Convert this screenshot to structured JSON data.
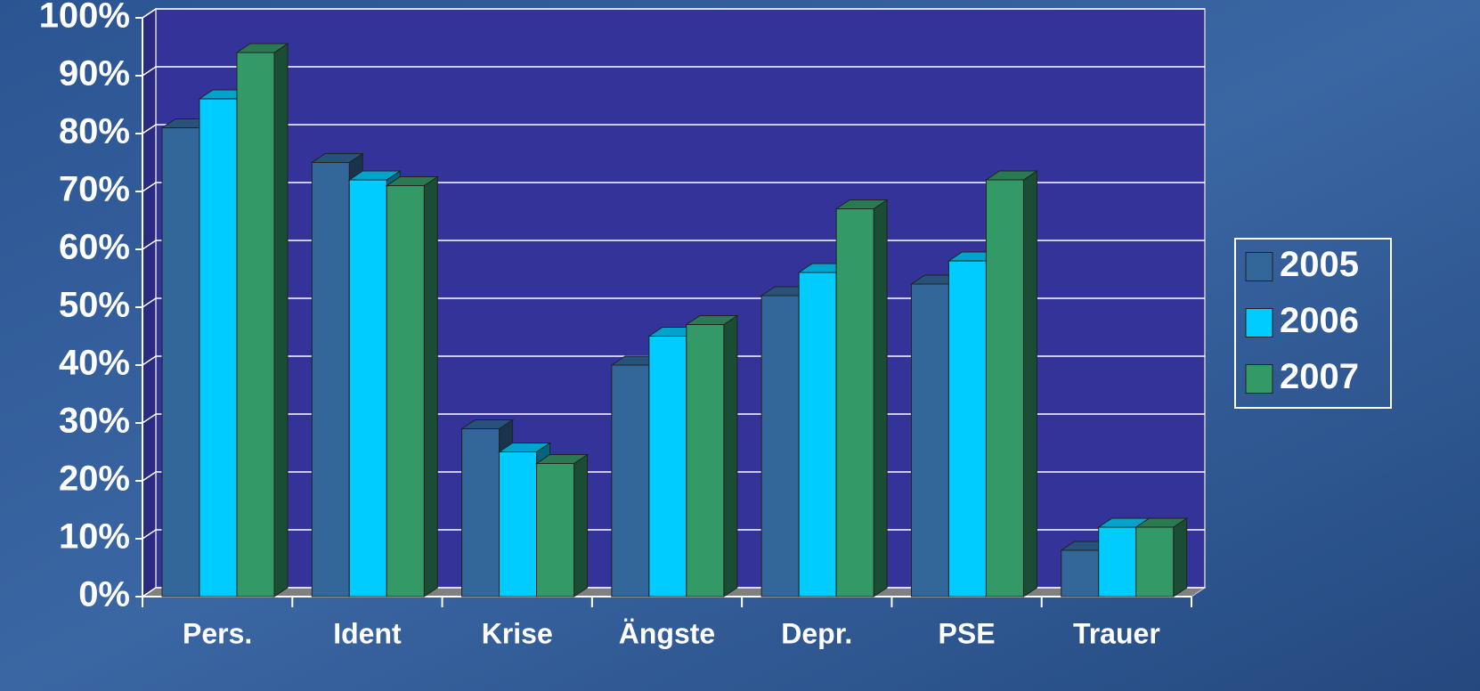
{
  "chart_data": {
    "type": "bar3d",
    "categories": [
      "Pers.",
      "Ident",
      "Krise",
      "Ängste",
      "Depr.",
      "PSE",
      "Trauer"
    ],
    "series": [
      {
        "name": "2005",
        "color": "#336699",
        "values": [
          81,
          75,
          29,
          40,
          52,
          54,
          8
        ]
      },
      {
        "name": "2006",
        "color": "#00ccff",
        "values": [
          86,
          72,
          25,
          45,
          56,
          58,
          12
        ]
      },
      {
        "name": "2007",
        "color": "#339966",
        "values": [
          94,
          71,
          23,
          47,
          67,
          72,
          12
        ]
      }
    ],
    "ylim": [
      0,
      100
    ],
    "yticks": [
      {
        "value": 0,
        "label": "0%"
      },
      {
        "value": 10,
        "label": "10%"
      },
      {
        "value": 20,
        "label": "20%"
      },
      {
        "value": 30,
        "label": "30%"
      },
      {
        "value": 40,
        "label": "40%"
      },
      {
        "value": 50,
        "label": "50%"
      },
      {
        "value": 60,
        "label": "60%"
      },
      {
        "value": 70,
        "label": "70%"
      },
      {
        "value": 80,
        "label": "80%"
      },
      {
        "value": 90,
        "label": "90%"
      },
      {
        "value": 100,
        "label": "100%"
      }
    ],
    "grid": true
  }
}
